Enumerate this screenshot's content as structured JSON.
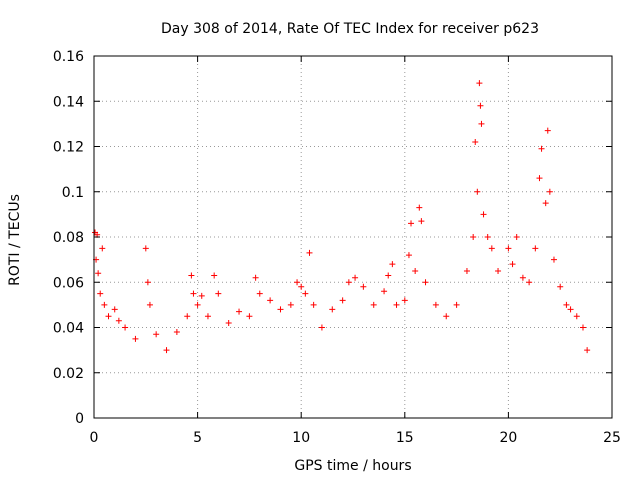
{
  "chart_data": {
    "type": "scatter",
    "title": "Day 308 of 2014, Rate Of TEC Index for receiver p623",
    "xlabel": "GPS time / hours",
    "ylabel": "ROTI / TECUs",
    "xlim": [
      0,
      25
    ],
    "ylim": [
      0,
      0.16
    ],
    "x_ticks": [
      0,
      5,
      10,
      15,
      20,
      25
    ],
    "x_tick_labels": [
      "0",
      "5",
      "10",
      "15",
      "20",
      "25"
    ],
    "y_ticks": [
      0,
      0.02,
      0.04,
      0.06,
      0.08,
      0.1,
      0.12,
      0.14,
      0.16
    ],
    "y_tick_labels": [
      "0",
      "0.02",
      "0.04",
      "0.06",
      "0.08",
      "0.1",
      "0.12",
      "0.14",
      "0.16"
    ],
    "grid": true,
    "marker": "+",
    "marker_color": "#ff0000",
    "series": [
      {
        "name": "ROTI p623",
        "points": [
          [
            0.05,
            0.082
          ],
          [
            0.1,
            0.07
          ],
          [
            0.15,
            0.081
          ],
          [
            0.2,
            0.064
          ],
          [
            0.3,
            0.055
          ],
          [
            0.4,
            0.075
          ],
          [
            0.5,
            0.05
          ],
          [
            0.7,
            0.045
          ],
          [
            1.0,
            0.048
          ],
          [
            1.2,
            0.043
          ],
          [
            1.5,
            0.04
          ],
          [
            2.0,
            0.035
          ],
          [
            2.5,
            0.075
          ],
          [
            2.6,
            0.06
          ],
          [
            2.7,
            0.05
          ],
          [
            3.0,
            0.037
          ],
          [
            3.5,
            0.03
          ],
          [
            4.0,
            0.038
          ],
          [
            4.5,
            0.045
          ],
          [
            4.7,
            0.063
          ],
          [
            4.8,
            0.055
          ],
          [
            5.0,
            0.05
          ],
          [
            5.2,
            0.054
          ],
          [
            5.5,
            0.045
          ],
          [
            5.8,
            0.063
          ],
          [
            6.0,
            0.055
          ],
          [
            6.5,
            0.042
          ],
          [
            7.0,
            0.047
          ],
          [
            7.5,
            0.045
          ],
          [
            7.8,
            0.062
          ],
          [
            8.0,
            0.055
          ],
          [
            8.5,
            0.052
          ],
          [
            9.0,
            0.048
          ],
          [
            9.5,
            0.05
          ],
          [
            9.8,
            0.06
          ],
          [
            10.0,
            0.058
          ],
          [
            10.2,
            0.055
          ],
          [
            10.4,
            0.073
          ],
          [
            10.6,
            0.05
          ],
          [
            11.0,
            0.04
          ],
          [
            11.5,
            0.048
          ],
          [
            12.0,
            0.052
          ],
          [
            12.3,
            0.06
          ],
          [
            12.6,
            0.062
          ],
          [
            13.0,
            0.058
          ],
          [
            13.5,
            0.05
          ],
          [
            14.0,
            0.056
          ],
          [
            14.2,
            0.063
          ],
          [
            14.4,
            0.068
          ],
          [
            14.6,
            0.05
          ],
          [
            15.0,
            0.052
          ],
          [
            15.2,
            0.072
          ],
          [
            15.3,
            0.086
          ],
          [
            15.5,
            0.065
          ],
          [
            15.7,
            0.093
          ],
          [
            15.8,
            0.087
          ],
          [
            16.0,
            0.06
          ],
          [
            16.5,
            0.05
          ],
          [
            17.0,
            0.045
          ],
          [
            17.5,
            0.05
          ],
          [
            18.0,
            0.065
          ],
          [
            18.3,
            0.08
          ],
          [
            18.4,
            0.122
          ],
          [
            18.5,
            0.1
          ],
          [
            18.6,
            0.148
          ],
          [
            18.65,
            0.138
          ],
          [
            18.7,
            0.13
          ],
          [
            18.8,
            0.09
          ],
          [
            19.0,
            0.08
          ],
          [
            19.2,
            0.075
          ],
          [
            19.5,
            0.065
          ],
          [
            20.0,
            0.075
          ],
          [
            20.2,
            0.068
          ],
          [
            20.4,
            0.08
          ],
          [
            20.7,
            0.062
          ],
          [
            21.0,
            0.06
          ],
          [
            21.3,
            0.075
          ],
          [
            21.5,
            0.106
          ],
          [
            21.6,
            0.119
          ],
          [
            21.8,
            0.095
          ],
          [
            21.9,
            0.127
          ],
          [
            22.0,
            0.1
          ],
          [
            22.2,
            0.07
          ],
          [
            22.5,
            0.058
          ],
          [
            22.8,
            0.05
          ],
          [
            23.0,
            0.048
          ],
          [
            23.3,
            0.045
          ],
          [
            23.6,
            0.04
          ],
          [
            23.8,
            0.03
          ]
        ]
      }
    ]
  }
}
